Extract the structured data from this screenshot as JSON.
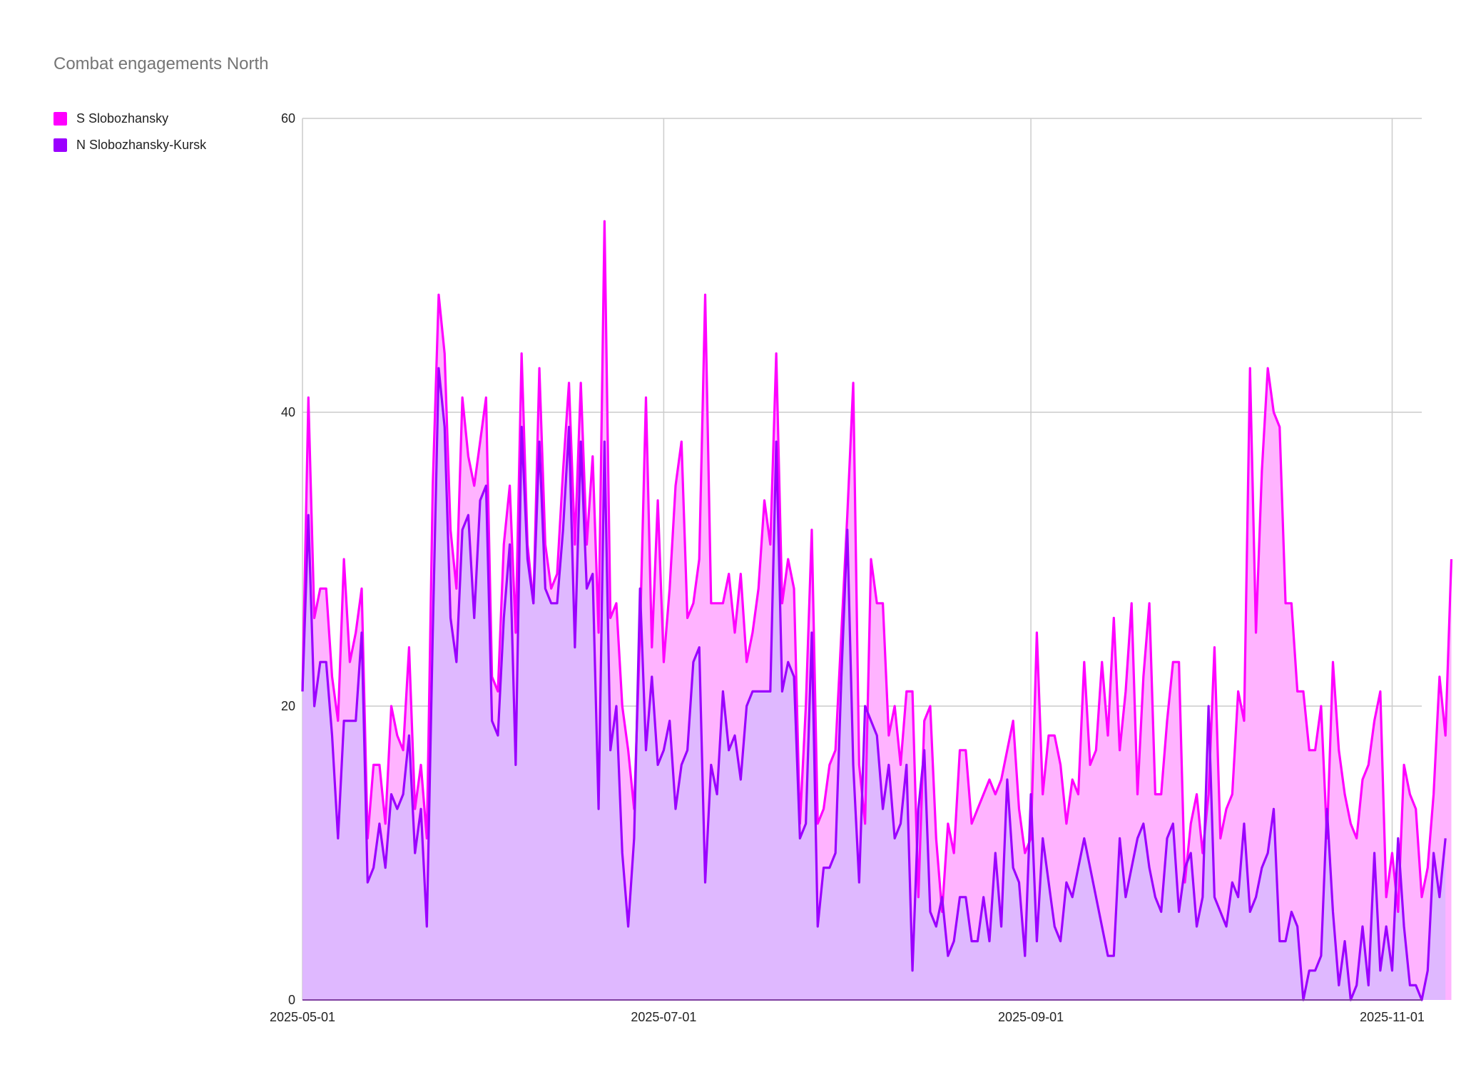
{
  "colors": {
    "s_series_line": "#ff00ff",
    "s_series_fill": "#ffb3ff",
    "n_series_line": "#9b00ff",
    "n_series_fill": "#dfb8ff",
    "grid": "#cccccc",
    "baseline": "#7f3fa0"
  },
  "chart_data": {
    "type": "area",
    "title": "Combat engagements North",
    "xlabel": "",
    "ylabel": "",
    "ylim": [
      0,
      60
    ],
    "yticks": [
      0,
      20,
      40,
      60
    ],
    "xlim": [
      "2025-05-01",
      "2025-11-06"
    ],
    "xticks": [
      "2025-05-01",
      "2025-07-01",
      "2025-09-01",
      "2025-11-01"
    ],
    "grid": true,
    "legend": "top-left",
    "start_date": "2025-05-01",
    "series": [
      {
        "name": "S Slobozhansky",
        "values": [
          21,
          41,
          26,
          28,
          28,
          22,
          19,
          30,
          23,
          25,
          28,
          11,
          16,
          16,
          12,
          20,
          18,
          17,
          24,
          13,
          16,
          11,
          35,
          48,
          44,
          32,
          28,
          41,
          37,
          35,
          38,
          41,
          22,
          21,
          31,
          35,
          25,
          44,
          31,
          27,
          43,
          31,
          28,
          29,
          36,
          42,
          31,
          42,
          31,
          37,
          25,
          53,
          26,
          27,
          20,
          17,
          13,
          25,
          41,
          24,
          34,
          23,
          28,
          35,
          38,
          26,
          27,
          30,
          48,
          27,
          27,
          27,
          29,
          25,
          29,
          23,
          25,
          28,
          34,
          31,
          44,
          27,
          30,
          28,
          12,
          20,
          32,
          12,
          13,
          16,
          17,
          25,
          33,
          42,
          16,
          12,
          30,
          27,
          27,
          18,
          20,
          16,
          21,
          21,
          7,
          19,
          20,
          11,
          6,
          12,
          10,
          17,
          17,
          12,
          13,
          14,
          15,
          14,
          15,
          17,
          19,
          13,
          10,
          11,
          25,
          14,
          18,
          18,
          16,
          12,
          15,
          14,
          23,
          16,
          17,
          23,
          18,
          26,
          17,
          21,
          27,
          14,
          22,
          27,
          14,
          14,
          19,
          23,
          23,
          8,
          12,
          14,
          10,
          14,
          24,
          11,
          13,
          14,
          21,
          19,
          43,
          25,
          36,
          43,
          40,
          39,
          27,
          27,
          21,
          21,
          17,
          17,
          20,
          11,
          23,
          17,
          14,
          12,
          11,
          15,
          16,
          19,
          21,
          7,
          10,
          6,
          16,
          14,
          13,
          7,
          9,
          14,
          22,
          18,
          30
        ],
        "color": "#ff00ff"
      },
      {
        "name": "N Slobozhansky-Kursk",
        "values": [
          21,
          33,
          20,
          23,
          23,
          18,
          11,
          19,
          19,
          19,
          25,
          8,
          9,
          12,
          9,
          14,
          13,
          14,
          18,
          10,
          13,
          5,
          25,
          43,
          39,
          26,
          23,
          32,
          33,
          26,
          34,
          35,
          19,
          18,
          26,
          31,
          16,
          39,
          30,
          27,
          38,
          28,
          27,
          27,
          32,
          39,
          24,
          38,
          28,
          29,
          13,
          38,
          17,
          20,
          10,
          5,
          11,
          28,
          17,
          22,
          16,
          17,
          19,
          13,
          16,
          17,
          23,
          24,
          8,
          16,
          14,
          21,
          17,
          18,
          15,
          20,
          21,
          21,
          21,
          21,
          38,
          21,
          23,
          22,
          11,
          12,
          25,
          5,
          9,
          9,
          10,
          22,
          32,
          16,
          8,
          20,
          19,
          18,
          13,
          16,
          11,
          12,
          16,
          2,
          13,
          17,
          6,
          5,
          7,
          3,
          4,
          7,
          7,
          4,
          4,
          7,
          4,
          10,
          5,
          15,
          9,
          8,
          3,
          14,
          4,
          11,
          8,
          5,
          4,
          8,
          7,
          9,
          11,
          9,
          7,
          5,
          3,
          3,
          11,
          7,
          9,
          11,
          12,
          9,
          7,
          6,
          11,
          12,
          6,
          9,
          10,
          5,
          7,
          20,
          7,
          6,
          5,
          8,
          7,
          12,
          6,
          7,
          9,
          10,
          13,
          4,
          4,
          6,
          5,
          0,
          2,
          2,
          3,
          13,
          6,
          1,
          4,
          0,
          1,
          5,
          1,
          10,
          2,
          5,
          2,
          11,
          5,
          1,
          1,
          0,
          2,
          10,
          7,
          11
        ],
        "color": "#9b00ff"
      }
    ]
  }
}
